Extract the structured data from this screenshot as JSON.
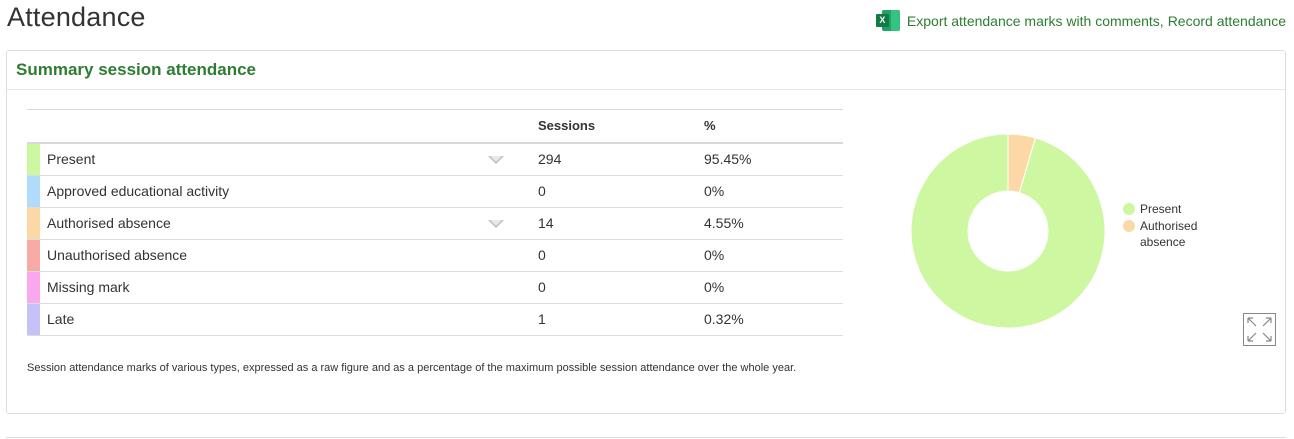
{
  "page": {
    "title": "Attendance"
  },
  "actions": {
    "export_label": "Export attendance marks with comments",
    "separator": ",",
    "record_label": "Record attendance",
    "export_icon": "excel-icon"
  },
  "panel": {
    "title": "Summary session attendance",
    "table": {
      "headers": {
        "label": "",
        "sessions": "Sessions",
        "percent": "%"
      },
      "rows": [
        {
          "label": "Present",
          "sessions": "294",
          "percent": "95.45%",
          "color": "#cdf7a0",
          "expandable": true
        },
        {
          "label": "Approved educational activity",
          "sessions": "0",
          "percent": "0%",
          "color": "#b0dbfa",
          "expandable": false
        },
        {
          "label": "Authorised absence",
          "sessions": "14",
          "percent": "4.55%",
          "color": "#fcd8a7",
          "expandable": true
        },
        {
          "label": "Unauthorised absence",
          "sessions": "0",
          "percent": "0%",
          "color": "#f8aba6",
          "expandable": false
        },
        {
          "label": "Missing mark",
          "sessions": "0",
          "percent": "0%",
          "color": "#f9a8ef",
          "expandable": false
        },
        {
          "label": "Late",
          "sessions": "1",
          "percent": "0.32%",
          "color": "#c4c2f7",
          "expandable": false
        }
      ]
    },
    "footnote": "Session attendance marks of various types, expressed as a raw figure and as a percentage of the maximum possible session attendance over the whole year.",
    "expand_icon": "expand-icon"
  },
  "chart_data": {
    "type": "pie",
    "donut": true,
    "categories": [
      "Present",
      "Authorised absence"
    ],
    "values": [
      294,
      14
    ],
    "colors": [
      "#cdf7a0",
      "#fcd8a7"
    ],
    "legend": {
      "placement": "right",
      "entries": [
        {
          "label": "Present",
          "lines": [
            "Present"
          ]
        },
        {
          "label": "Authorised absence",
          "lines": [
            "Authorised",
            "absence"
          ]
        }
      ]
    }
  }
}
